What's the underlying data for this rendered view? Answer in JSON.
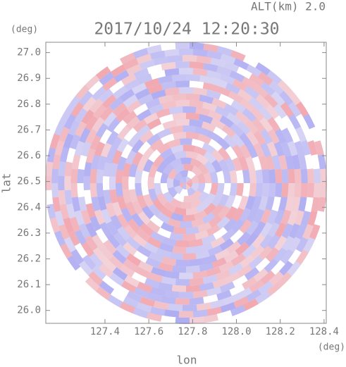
{
  "chart_data": {
    "type": "radar-ppi",
    "title": "2017/10/24 12:20:30",
    "subtitle": "ALT(km) 2.0",
    "x_label": "lon",
    "y_label": "lat",
    "x_unit": "(deg)",
    "y_unit": "(deg)",
    "xlim": [
      127.13,
      128.41
    ],
    "ylim": [
      25.95,
      27.04
    ],
    "xticks": [
      127.4,
      127.6,
      127.8,
      {
        "value": 128.0,
        "label": "128.0"
      },
      128.2,
      128.4
    ],
    "yticks": [
      {
        "value": 26.0,
        "label": "26.0"
      },
      26.1,
      26.2,
      26.3,
      26.4,
      26.5,
      26.6,
      26.7,
      26.8,
      26.9,
      {
        "value": 27.0,
        "label": "27.0"
      }
    ]
  }
}
